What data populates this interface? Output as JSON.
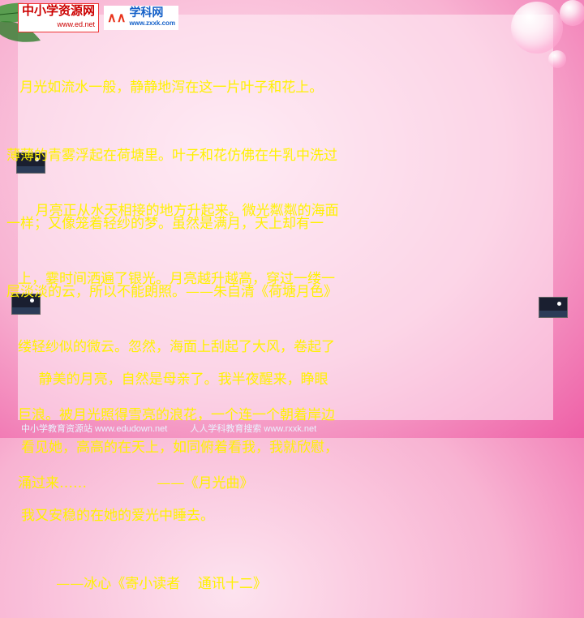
{
  "logos": {
    "site1_name": "中小学资源网",
    "site1_url": "www.ed.net",
    "site2_name": "学科网",
    "site2_url": "www.zxxk.com"
  },
  "passages": [
    {
      "lines": [
        "   月光如流水一般，静静地泻在这一片叶子和花上。",
        "薄薄的青雾浮起在荷塘里。叶子和花仿佛在牛乳中洗过",
        "一样；又像笼着轻纱的梦。虽然是满月，天上却有一",
        "层淡淡的云，所以不能朗照。——朱自清《荷塘月色》"
      ]
    },
    {
      "lines": [
        "    月亮正从水天相接的地方升起来。微光粼粼的海面",
        "上，霎时间洒遍了银光。月亮越升越高，穿过一缕一",
        "缕轻纱似的微云。忽然，海面上刮起了大风，卷起了",
        "巨浪。被月光照得雪亮的浪花，一个连一个朝着岸边",
        "涌过来……                ——《月光曲》"
      ]
    },
    {
      "lines": [
        "    静美的月亮，自然是母亲了。我半夜醒来，睁眼",
        "看见她，高高的在天上，如同俯着看我，我就欣慰，",
        "我又安稳的在她的爱光中睡去。",
        "        ——冰心《寄小读者    通讯十二》"
      ]
    }
  ],
  "footer": {
    "left": "中小学教育资源站 www.edudown.net",
    "right": "人人学科教育搜索 www.rxxk.net"
  },
  "colors": {
    "text": "#fff200",
    "background": "#f8b3d2"
  }
}
